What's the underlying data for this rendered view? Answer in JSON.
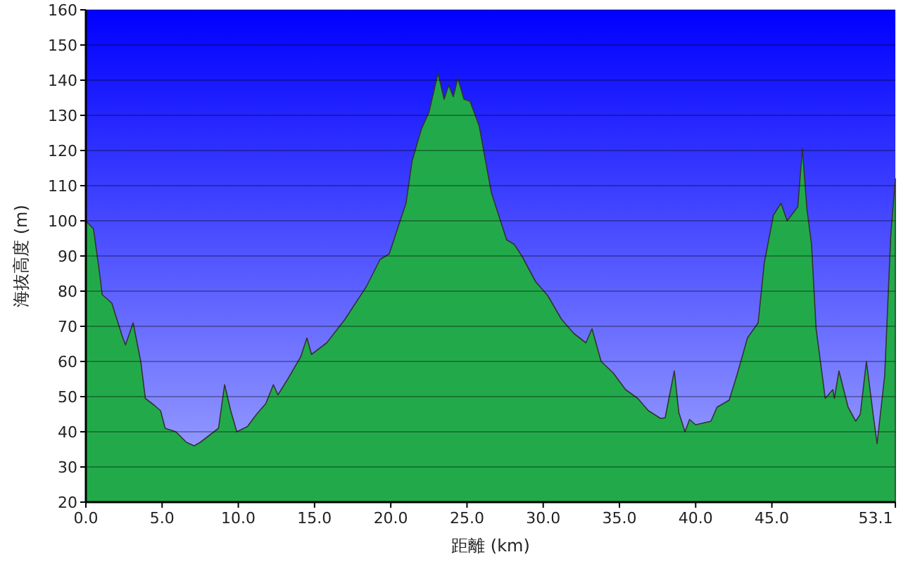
{
  "chart_data": {
    "type": "area",
    "xlabel": "距離 (km)",
    "ylabel": "海抜高度 (m)",
    "color": "#22aa4a",
    "grid": "y",
    "xlim": [
      0,
      53.1
    ],
    "ylim": [
      20,
      160
    ],
    "xticks": [
      {
        "value": 0,
        "label": "0.0"
      },
      {
        "value": 5,
        "label": "5.0"
      },
      {
        "value": 10,
        "label": "10.0"
      },
      {
        "value": 15,
        "label": "15.0"
      },
      {
        "value": 20,
        "label": "20.0"
      },
      {
        "value": 25,
        "label": "25.0"
      },
      {
        "value": 30,
        "label": "30.0"
      },
      {
        "value": 35,
        "label": "35.0"
      },
      {
        "value": 40,
        "label": "40.0"
      },
      {
        "value": 45,
        "label": "45.0"
      },
      {
        "value": 53.1,
        "label": "53.1"
      }
    ],
    "yticks": [
      20,
      30,
      40,
      50,
      60,
      70,
      80,
      90,
      100,
      110,
      120,
      130,
      140,
      150,
      160
    ],
    "x": [
      0,
      0.5,
      0.9,
      1.07,
      1.7,
      2.4,
      2.6,
      3.1,
      3.6,
      3.9,
      4.5,
      4.9,
      5.2,
      5.9,
      6.6,
      7.1,
      7.5,
      8.1,
      8.7,
      9.1,
      9.5,
      9.9,
      10.6,
      11.2,
      11.8,
      12.3,
      12.6,
      13.3,
      14.1,
      14.5,
      14.8,
      15.8,
      17.0,
      17.6,
      18.4,
      19.3,
      19.9,
      20.5,
      21.0,
      21.4,
      22.0,
      22.5,
      23.1,
      23.5,
      23.8,
      24.1,
      24.4,
      24.8,
      25.2,
      25.8,
      26.6,
      27.6,
      28.1,
      28.6,
      29.5,
      30.3,
      31.2,
      32.0,
      32.8,
      33.2,
      33.8,
      34.6,
      35.4,
      36.2,
      36.9,
      37.7,
      38.0,
      38.6,
      38.9,
      39.3,
      39.6,
      40.0,
      41.0,
      41.4,
      42.2,
      42.7,
      43.4,
      44.1,
      44.5,
      45.1,
      45.6,
      46.0,
      46.7,
      47.0,
      47.3,
      47.6,
      47.9,
      48.5,
      49.0,
      49.1,
      49.4,
      50.0,
      50.5,
      50.8,
      51.2,
      51.7,
      51.9,
      52.4,
      52.8,
      53.1
    ],
    "values": [
      100,
      97.7,
      85,
      79,
      76.6,
      67,
      64.7,
      71,
      60,
      49.5,
      47.5,
      46,
      41,
      40,
      37,
      36,
      37,
      39,
      41,
      53.4,
      46,
      40,
      41.5,
      45,
      48,
      53.4,
      50.5,
      55.4,
      61.4,
      66.7,
      62,
      65.3,
      72,
      76,
      81.3,
      89,
      90.6,
      98.5,
      105,
      117,
      126,
      130.8,
      142,
      134.6,
      138.6,
      135.3,
      140.6,
      134.6,
      134,
      127,
      108,
      94.6,
      93.3,
      90,
      82.7,
      78.7,
      72,
      68,
      65.3,
      69.3,
      60,
      56.7,
      52,
      49.5,
      46,
      43.8,
      44,
      57.3,
      45.4,
      40,
      43.5,
      42,
      43,
      47,
      49,
      56,
      66.7,
      71,
      88,
      101.6,
      105,
      100,
      104,
      120.5,
      103.3,
      93.3,
      69.3,
      49.5,
      52,
      49.5,
      57.3,
      47,
      43,
      45,
      60,
      43,
      36.6,
      56,
      96,
      112
    ]
  }
}
